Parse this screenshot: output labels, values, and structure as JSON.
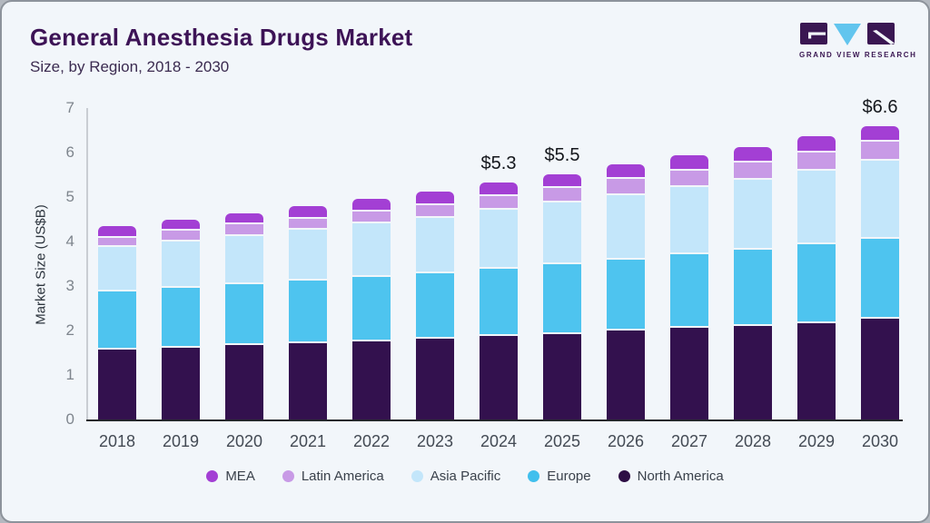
{
  "header": {
    "title": "General Anesthesia Drugs Market",
    "subtitle": "Size, by Region, 2018 - 2030"
  },
  "logo": {
    "wordmark": "GRAND VIEW RESEARCH",
    "block_color": "#3a1752",
    "triangle_color": "#62c5ee"
  },
  "chart_data": {
    "type": "bar",
    "stacked": true,
    "title": "General Anesthesia Drugs Market",
    "subtitle": "Size, by Region, 2018 - 2030",
    "ylabel": "Market Size (US$B)",
    "ylim": [
      0,
      7
    ],
    "yticks": [
      0,
      1,
      2,
      3,
      4,
      5,
      6,
      7
    ],
    "grid": false,
    "legend_position": "bottom",
    "background": "#f2f6fa",
    "categories": [
      "2018",
      "2019",
      "2020",
      "2021",
      "2022",
      "2023",
      "2024",
      "2025",
      "2026",
      "2027",
      "2028",
      "2029",
      "2030"
    ],
    "series": [
      {
        "name": "North America",
        "color": "#33114e",
        "values": [
          1.62,
          1.66,
          1.72,
          1.76,
          1.8,
          1.85,
          1.91,
          1.96,
          2.04,
          2.1,
          2.15,
          2.21,
          2.3
        ]
      },
      {
        "name": "Europe",
        "color": "#4ec4ef",
        "values": [
          1.29,
          1.33,
          1.36,
          1.4,
          1.44,
          1.47,
          1.52,
          1.57,
          1.6,
          1.65,
          1.7,
          1.76,
          1.8
        ]
      },
      {
        "name": "Asia Pacific",
        "color": "#c3e6fa",
        "values": [
          1.0,
          1.05,
          1.08,
          1.14,
          1.2,
          1.26,
          1.32,
          1.38,
          1.45,
          1.52,
          1.58,
          1.66,
          1.76
        ]
      },
      {
        "name": "Latin America",
        "color": "#c89ae6",
        "values": [
          0.22,
          0.24,
          0.26,
          0.26,
          0.27,
          0.28,
          0.31,
          0.33,
          0.35,
          0.37,
          0.39,
          0.41,
          0.43
        ]
      },
      {
        "name": "MEA",
        "color": "#a33fd4",
        "values": [
          0.21,
          0.22,
          0.22,
          0.24,
          0.25,
          0.26,
          0.27,
          0.28,
          0.29,
          0.3,
          0.31,
          0.32,
          0.31
        ]
      }
    ],
    "value_labels": {
      "2024": "$5.3",
      "2025": "$5.5",
      "2030": "$6.6"
    },
    "legend": [
      {
        "name": "MEA",
        "color": "#a33fd4"
      },
      {
        "name": "Latin America",
        "color": "#c89ae6"
      },
      {
        "name": "Asia Pacific",
        "color": "#c3e6fa"
      },
      {
        "name": "Europe",
        "color": "#41bfed"
      },
      {
        "name": "North America",
        "color": "#2e0f45"
      }
    ]
  }
}
